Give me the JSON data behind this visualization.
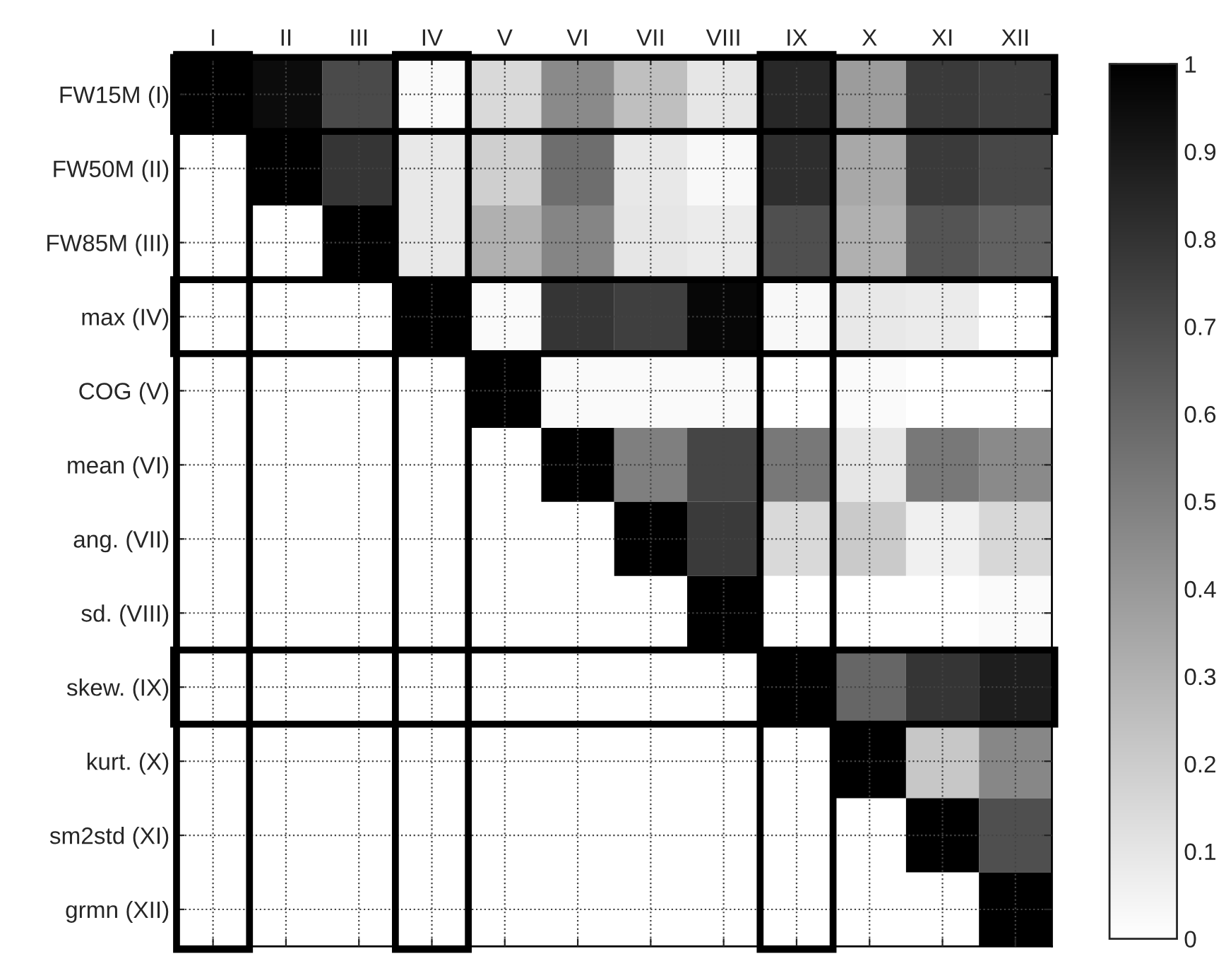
{
  "chart_data": {
    "type": "heatmap",
    "categories": [
      "I",
      "II",
      "III",
      "IV",
      "V",
      "VI",
      "VII",
      "VIII",
      "IX",
      "X",
      "XI",
      "XII"
    ],
    "y_categories": [
      "FW15M (I)",
      "FW50M (II)",
      "FW85M (III)",
      "max (IV)",
      "COG (V)",
      "mean (VI)",
      "ang. (VII)",
      "sd. (VIII)",
      "skew. (IX)",
      "kurt. (X)",
      "sm2std (XI)",
      "grmn (XII)"
    ],
    "cells": [
      [
        1,
        0.95,
        0.71,
        0.02,
        0.15,
        0.46,
        0.25,
        0.1,
        0.84,
        0.39,
        0.77,
        0.75
      ],
      [
        null,
        1,
        0.79,
        0.09,
        0.19,
        0.57,
        0.09,
        0.03,
        0.82,
        0.34,
        0.77,
        0.72
      ],
      [
        null,
        null,
        1,
        0.09,
        0.31,
        0.48,
        0.1,
        0.08,
        0.69,
        0.31,
        0.67,
        0.62
      ],
      [
        null,
        null,
        null,
        1,
        0.02,
        0.79,
        0.75,
        0.97,
        0.03,
        0.09,
        0.08,
        0
      ],
      [
        null,
        null,
        null,
        null,
        1,
        0.02,
        0.02,
        0.02,
        0,
        0.02,
        0,
        0
      ],
      [
        null,
        null,
        null,
        null,
        null,
        1,
        0.5,
        0.73,
        0.53,
        0.1,
        0.53,
        0.46
      ],
      [
        null,
        null,
        null,
        null,
        null,
        null,
        1,
        0.77,
        0.15,
        0.21,
        0.06,
        0.16
      ],
      [
        null,
        null,
        null,
        null,
        null,
        null,
        null,
        1,
        0,
        0,
        0,
        0.02
      ],
      [
        null,
        null,
        null,
        null,
        null,
        null,
        null,
        null,
        1,
        0.6,
        0.79,
        0.88
      ],
      [
        null,
        null,
        null,
        null,
        null,
        null,
        null,
        null,
        null,
        1,
        0.22,
        0.47
      ],
      [
        null,
        null,
        null,
        null,
        null,
        null,
        null,
        null,
        null,
        null,
        1,
        0.69
      ],
      [
        null,
        null,
        null,
        null,
        null,
        null,
        null,
        null,
        null,
        null,
        null,
        1
      ]
    ],
    "clim": [
      0,
      1
    ],
    "cticks": [
      0,
      0.1,
      0.2,
      0.3,
      0.4,
      0.5,
      0.6,
      0.7,
      0.8,
      0.9,
      1
    ],
    "grid": true
  }
}
